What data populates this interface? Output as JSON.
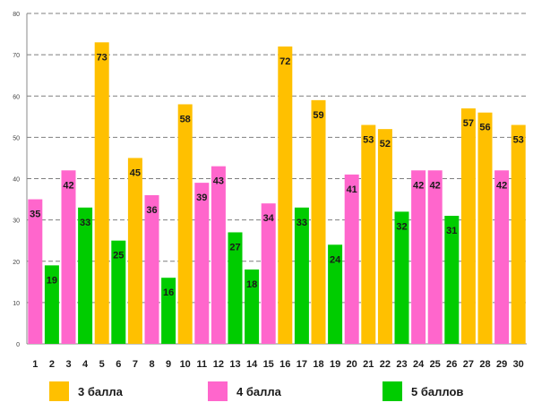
{
  "chart_data": {
    "type": "bar",
    "categories": [
      "1",
      "2",
      "3",
      "4",
      "5",
      "6",
      "7",
      "8",
      "9",
      "10",
      "11",
      "12",
      "13",
      "14",
      "15",
      "16",
      "17",
      "18",
      "19",
      "20",
      "21",
      "22",
      "23",
      "24",
      "25",
      "26",
      "27",
      "28",
      "29",
      "30"
    ],
    "values": [
      35,
      19,
      42,
      33,
      73,
      25,
      45,
      36,
      16,
      58,
      39,
      43,
      27,
      18,
      34,
      72,
      33,
      59,
      24,
      41,
      53,
      52,
      32,
      42,
      42,
      31,
      57,
      56,
      42,
      53
    ],
    "series_index": [
      1,
      2,
      1,
      2,
      0,
      2,
      0,
      1,
      2,
      0,
      1,
      1,
      2,
      2,
      1,
      0,
      2,
      0,
      2,
      1,
      0,
      0,
      2,
      1,
      1,
      2,
      0,
      0,
      1,
      0
    ],
    "series": [
      {
        "name": "3 балла",
        "color": "#FFC000"
      },
      {
        "name": "4 балла",
        "color": "#FF66CC"
      },
      {
        "name": "5 баллов",
        "color": "#00CC00"
      }
    ],
    "yticks": [
      0,
      10,
      20,
      30,
      40,
      50,
      60,
      70,
      80
    ],
    "ylim": [
      0,
      80
    ],
    "grid": true,
    "legend_position": "bottom",
    "title": "",
    "xlabel": "",
    "ylabel": ""
  }
}
